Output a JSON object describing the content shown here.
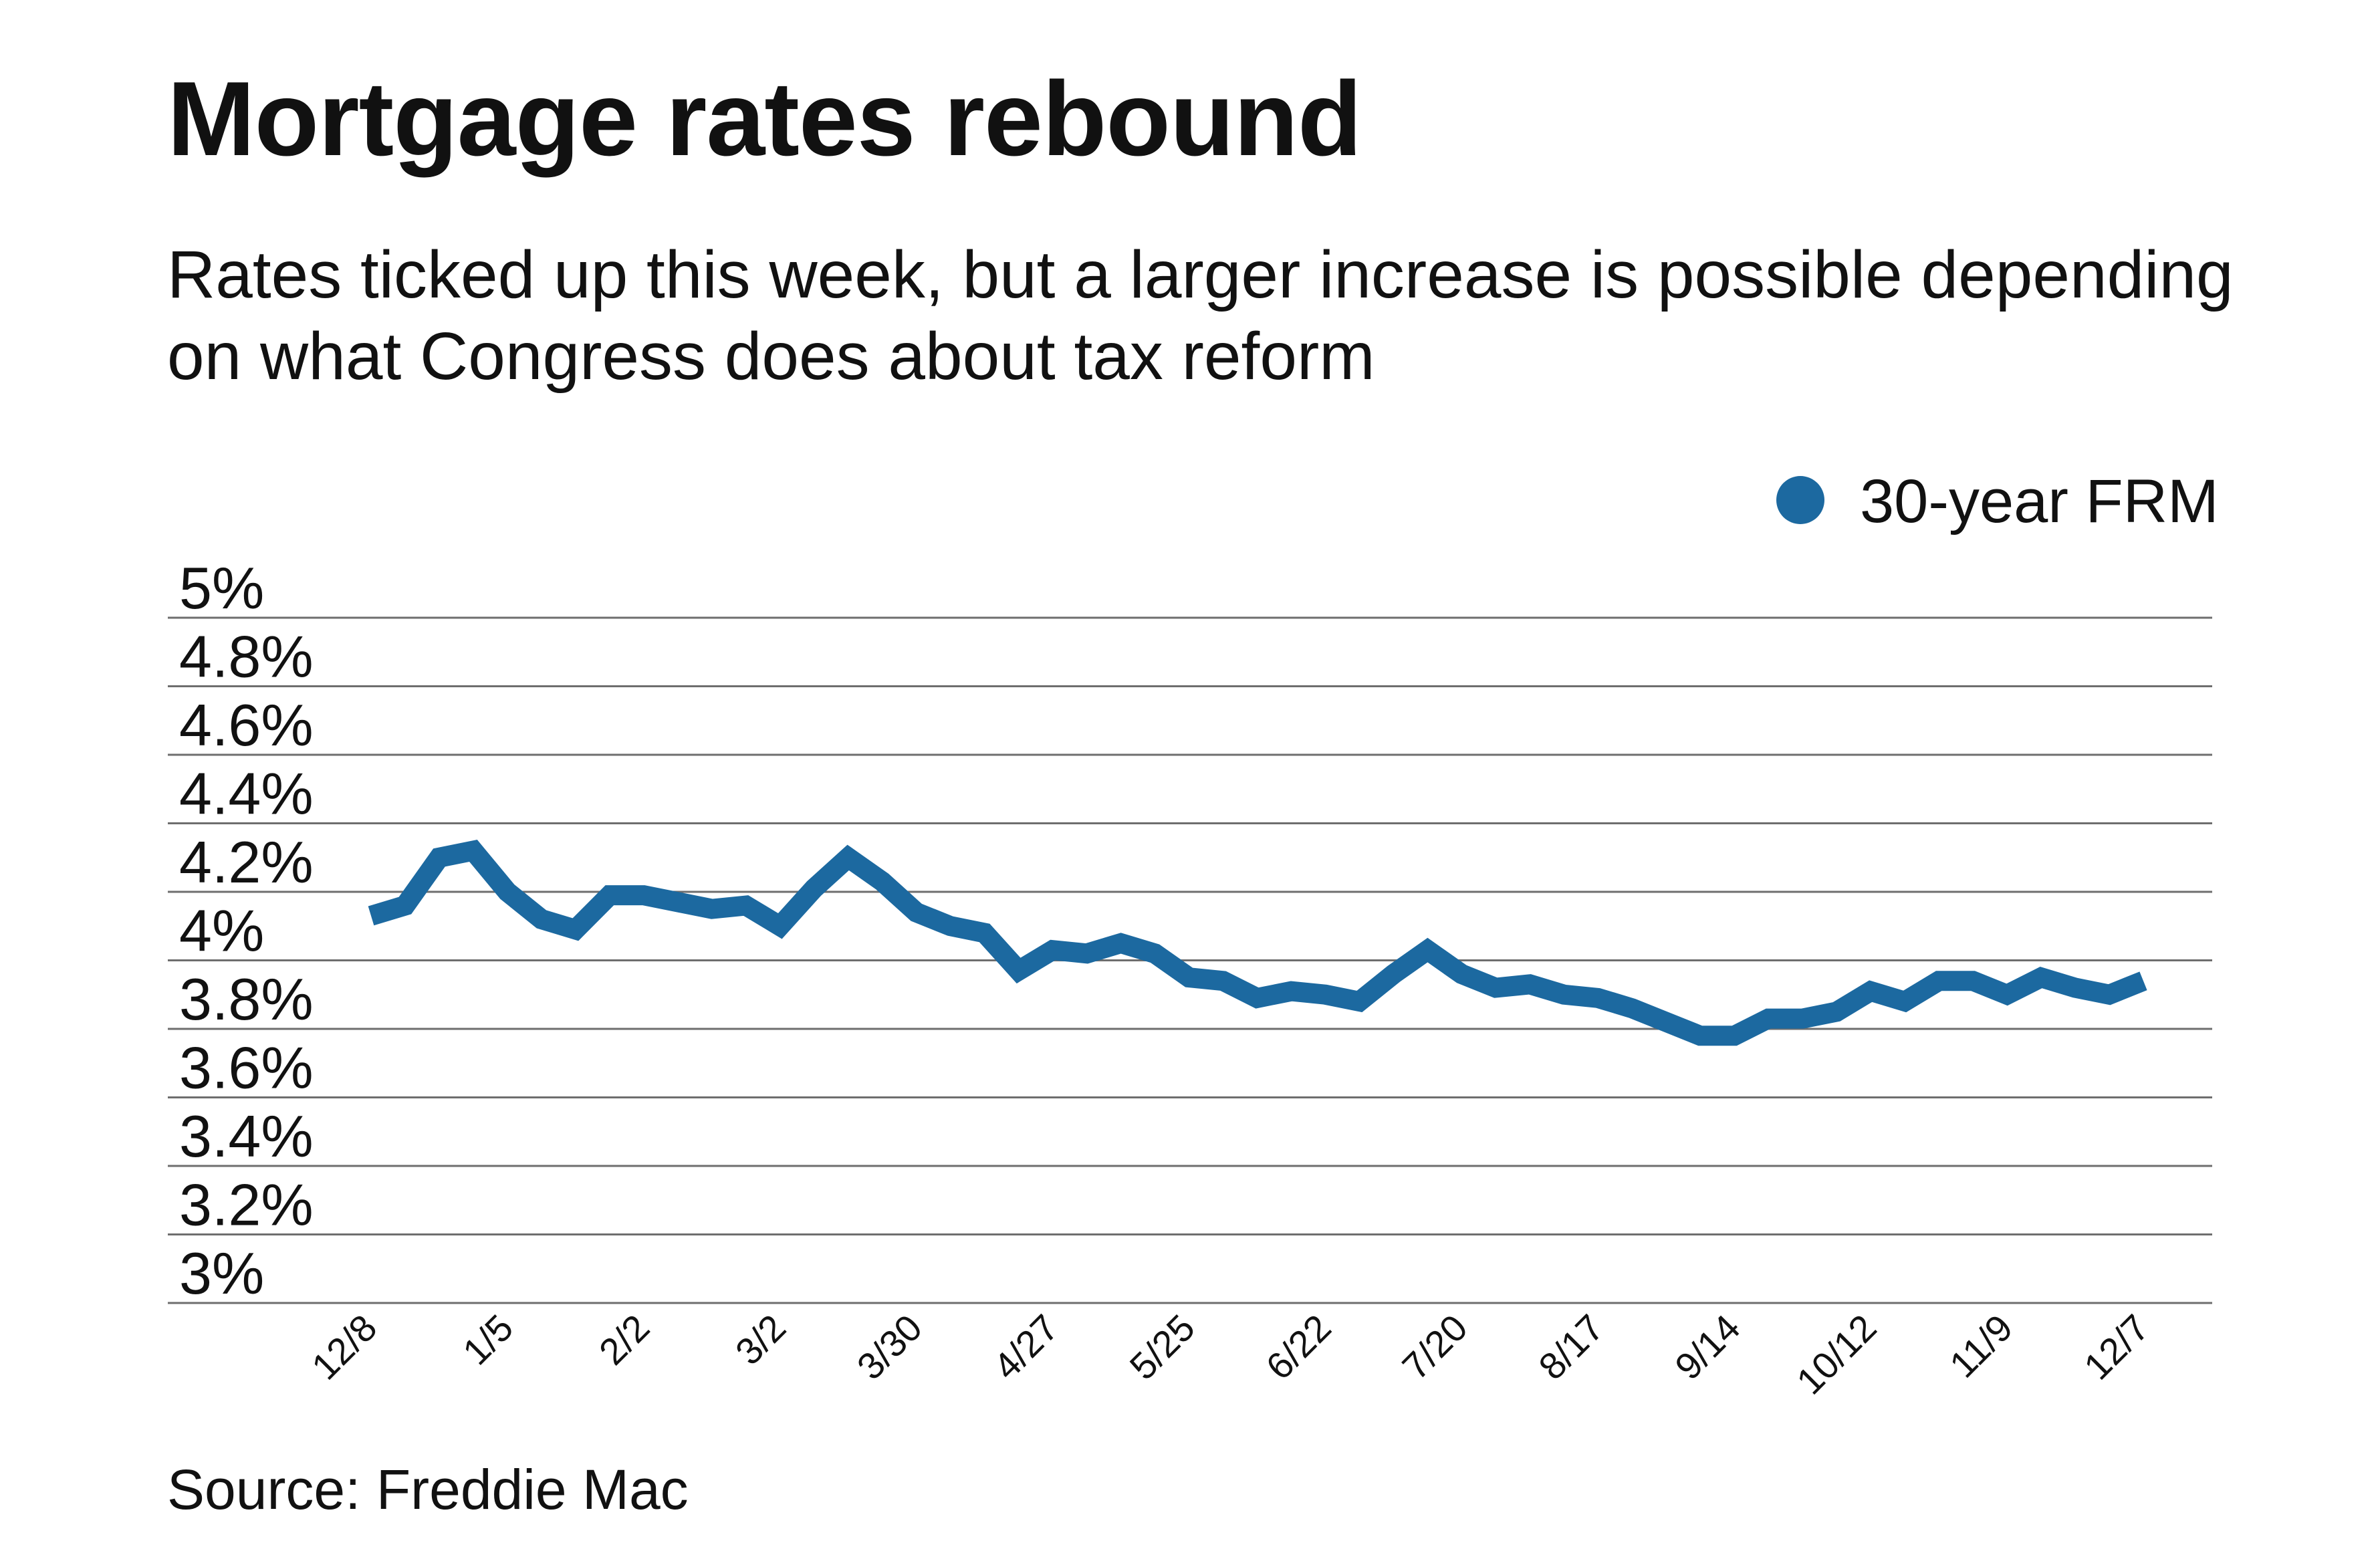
{
  "title": "Mortgage rates rebound",
  "subtitle": "Rates ticked up this week, but a larger increase is possible depending on what Congress does about tax reform",
  "source": "Source: Freddie Mac",
  "chart_data": {
    "type": "line",
    "title": "Mortgage rates rebound",
    "xlabel": "",
    "ylabel": "",
    "ylim": [
      3,
      5
    ],
    "y_ticks": [
      "5%",
      "4.8%",
      "4.6%",
      "4.4%",
      "4.2%",
      "4%",
      "3.8%",
      "3.6%",
      "3.4%",
      "3.2%",
      "3%"
    ],
    "y_tick_values": [
      5,
      4.8,
      4.6,
      4.4,
      4.2,
      4.0,
      3.8,
      3.6,
      3.4,
      3.2,
      3.0
    ],
    "x_ticks": [
      "12/8",
      "1/5",
      "2/2",
      "3/2",
      "3/30",
      "4/27",
      "5/25",
      "6/22",
      "7/20",
      "8/17",
      "9/14",
      "10/12",
      "11/9",
      "12/7"
    ],
    "grid": true,
    "legend": "top-right",
    "color": "#1c69a0",
    "x": [
      "12/8",
      "12/15",
      "12/22",
      "12/29",
      "1/5",
      "1/12",
      "1/19",
      "1/26",
      "2/2",
      "2/9",
      "2/16",
      "2/23",
      "3/2",
      "3/9",
      "3/16",
      "3/23",
      "3/30",
      "4/6",
      "4/13",
      "4/20",
      "4/27",
      "5/4",
      "5/11",
      "5/18",
      "5/25",
      "6/1",
      "6/8",
      "6/15",
      "6/22",
      "6/29",
      "7/6",
      "7/13",
      "7/20",
      "7/27",
      "8/3",
      "8/10",
      "8/17",
      "8/24",
      "8/31",
      "9/7",
      "9/14",
      "9/21",
      "9/28",
      "10/5",
      "10/12",
      "10/19",
      "10/26",
      "11/2",
      "11/9",
      "11/16",
      "11/22",
      "11/30",
      "12/7"
    ],
    "series": [
      {
        "name": "30-year FRM",
        "values": [
          4.13,
          4.16,
          4.3,
          4.32,
          4.2,
          4.12,
          4.09,
          4.19,
          4.19,
          4.17,
          4.15,
          4.16,
          4.1,
          4.21,
          4.3,
          4.23,
          4.14,
          4.1,
          4.08,
          3.97,
          4.03,
          4.02,
          4.05,
          4.02,
          3.95,
          3.94,
          3.89,
          3.91,
          3.9,
          3.88,
          3.96,
          4.03,
          3.96,
          3.92,
          3.93,
          3.9,
          3.89,
          3.86,
          3.82,
          3.78,
          3.78,
          3.83,
          3.83,
          3.85,
          3.91,
          3.88,
          3.94,
          3.94,
          3.9,
          3.95,
          3.92,
          3.9,
          3.94
        ]
      }
    ]
  }
}
